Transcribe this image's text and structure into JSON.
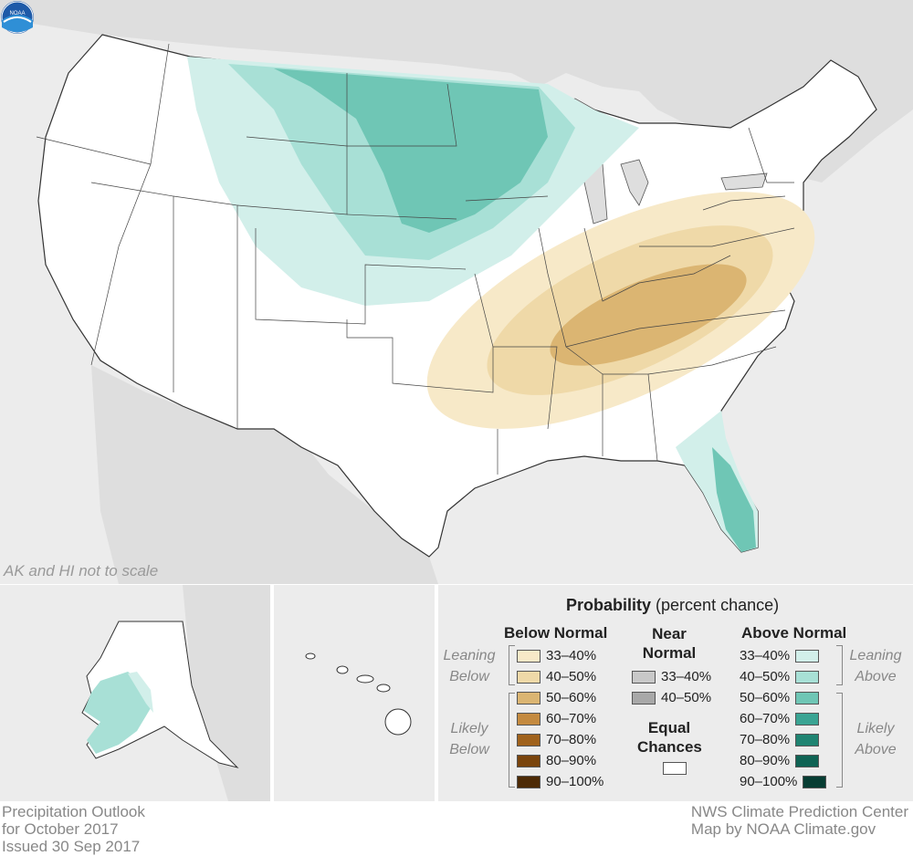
{
  "map": {
    "scale_note": "AK and HI not to scale",
    "logo_text": "NOAA"
  },
  "legend": {
    "title_bold": "Probability",
    "title_rest": "(percent chance)",
    "below": {
      "heading": "Below Normal",
      "leaning_label_1": "Leaning",
      "leaning_label_2": "Below",
      "likely_label_1": "Likely",
      "likely_label_2": "Below",
      "ranges": [
        "33–40%",
        "40–50%",
        "50–60%",
        "60–70%",
        "70–80%",
        "80–90%",
        "90–100%"
      ],
      "colors": [
        "#f7e9c8",
        "#efd9a8",
        "#dbb572",
        "#c48a3f",
        "#a0621c",
        "#7a450d",
        "#4d2a05"
      ]
    },
    "near": {
      "heading_1": "Near",
      "heading_2": "Normal",
      "ranges": [
        "33–40%",
        "40–50%"
      ],
      "colors": [
        "#c8c8c8",
        "#a8a8a8"
      ],
      "equal_1": "Equal",
      "equal_2": "Chances"
    },
    "above": {
      "heading": "Above Normal",
      "leaning_label_1": "Leaning",
      "leaning_label_2": "Above",
      "likely_label_1": "Likely",
      "likely_label_2": "Above",
      "ranges": [
        "33–40%",
        "40–50%",
        "50–60%",
        "60–70%",
        "70–80%",
        "80–90%",
        "90–100%"
      ],
      "colors": [
        "#d2efea",
        "#a8e0d6",
        "#6fc6b5",
        "#3aa493",
        "#1f8472",
        "#0f6354",
        "#073d33"
      ]
    }
  },
  "footer": {
    "left_1": "Precipitation Outlook",
    "left_2": "for October 2017",
    "left_3": "Issued 30 Sep 2017",
    "right_1": "NWS Climate Prediction Center",
    "right_2": "Map by NOAA Climate.gov"
  }
}
